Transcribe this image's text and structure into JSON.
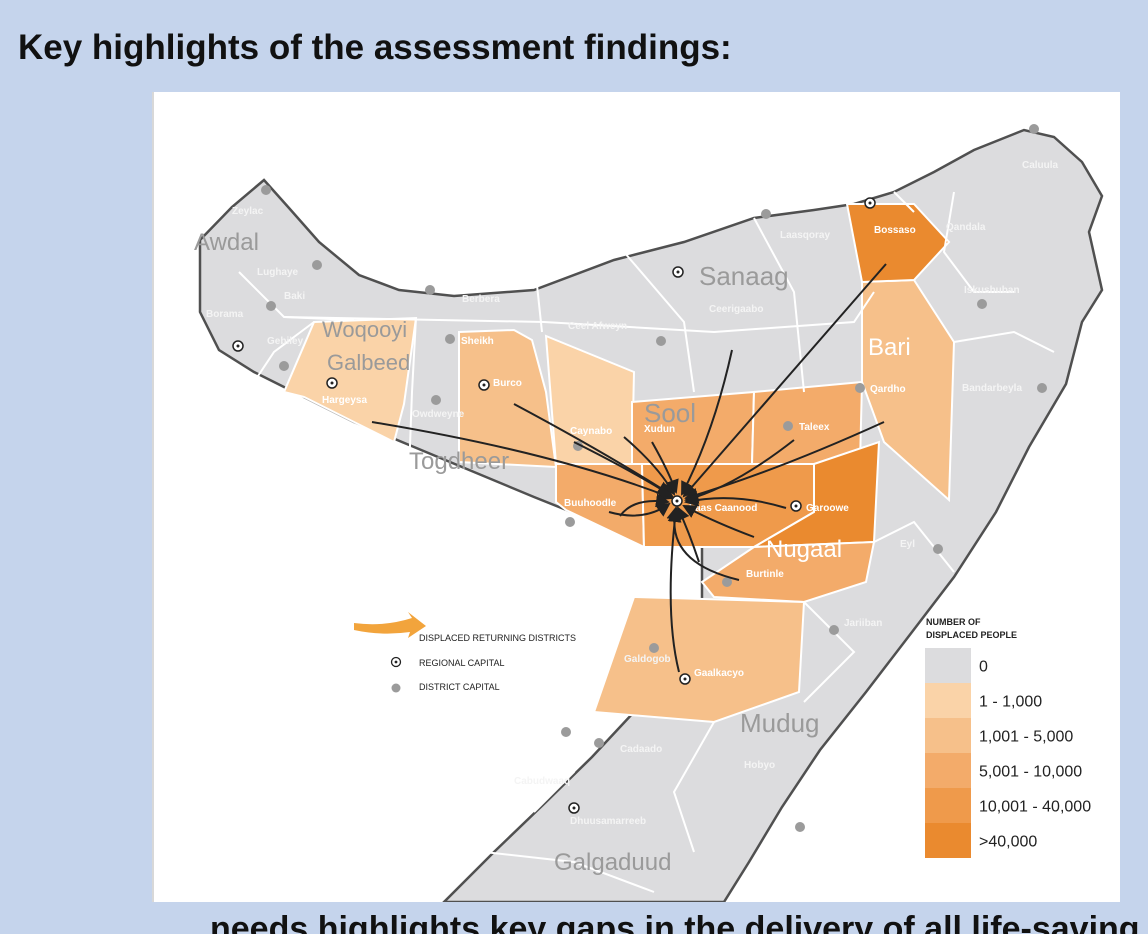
{
  "heading": "Key highlights of the assessment findings:",
  "map": {
    "regions": {
      "awdal": "Awdal",
      "woqooyi_1": "Woqooyi",
      "woqooyi_2": "Galbeed",
      "togdheer": "Togdheer",
      "sanaag": "Sanaag",
      "sool": "Sool",
      "bari": "Bari",
      "nugaal": "Nugaal",
      "mudug": "Mudug",
      "galgaduud": "Galgaduud"
    },
    "districts": {
      "zeylac": "Zeylac",
      "lughaye": "Lughaye",
      "baki": "Baki",
      "borama": "Borama",
      "gebiley": "Gebiley",
      "hargeysa": "Hargeysa",
      "berbera": "Berbera",
      "sheikh": "Sheikh",
      "owdweyne": "Owdweyne",
      "burco": "Burco",
      "ceel_afweyn": "Ceel Afweyn",
      "ceerigaabo": "Ceerigaabo",
      "laasqoray": "Laasqoray",
      "bossaso": "Bossaso",
      "qandala": "Qandala",
      "caluula": "Caluula",
      "iskushuban": "Iskushuban",
      "qardho": "Qardho",
      "bandarbeyla": "Bandarbeyla",
      "caynabo": "Caynabo",
      "xudun": "Xudun",
      "taleex": "Taleex",
      "buuhoodle": "Buuhoodle",
      "laas_caanood": "Laas Caanood",
      "garoowe": "Garoowe",
      "eyl": "Eyl",
      "burtinle": "Burtinle",
      "jariiban": "Jariiban",
      "galdogob": "Galdogob",
      "gaalkacyo": "Gaalkacyo",
      "cadaado": "Cadaado",
      "hobyo": "Hobyo",
      "cabudwaaq": "Cabudwaaq",
      "dhuusamarreeb": "Dhuusamarreeb"
    },
    "legend": {
      "arrow_label": "DISPLACED RETURNING DISTRICTS",
      "regional_label": "REGIONAL CAPITAL",
      "district_label": "DISTRICT CAPITAL",
      "scale_title_1": "NUMBER OF",
      "scale_title_2": "DISPLACED PEOPLE",
      "classes": [
        {
          "label": "0",
          "color": "#dcdcde"
        },
        {
          "label": "1 - 1,000",
          "color": "#fad3a8"
        },
        {
          "label": "1,001 - 5,000",
          "color": "#f6c08a"
        },
        {
          "label": "5,001 - 10,000",
          "color": "#f3ab6a"
        },
        {
          "label": "10,001 - 40,000",
          "color": "#ef9a4b"
        },
        {
          "label": ">40,000",
          "color": "#ea8a2f"
        }
      ],
      "arrow_color": "#f2a43c"
    }
  },
  "clipped_line": "needs highlights  key gaps in the delivery of all life-saving"
}
